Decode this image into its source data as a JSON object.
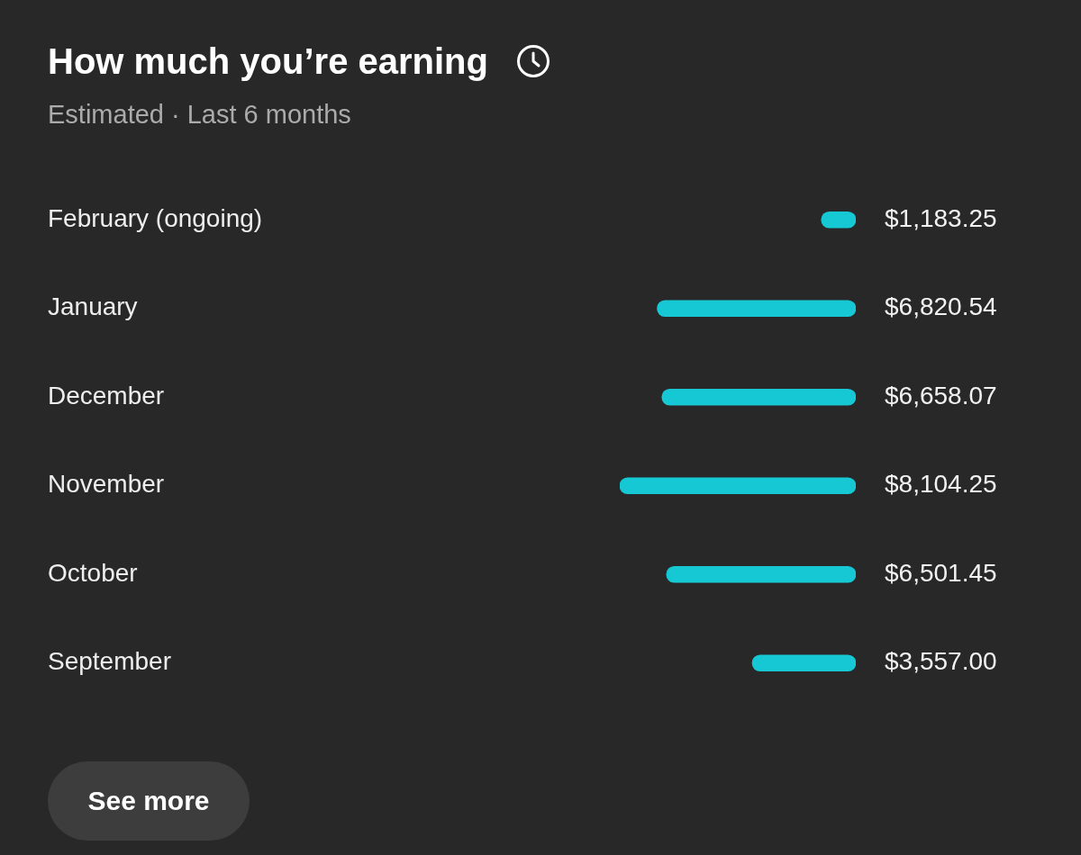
{
  "chart_data": {
    "type": "bar",
    "orientation": "horizontal",
    "title": "How much you’re earning",
    "subtitle": "Estimated · Last 6 months",
    "categories": [
      "February (ongoing)",
      "January",
      "December",
      "November",
      "October",
      "September"
    ],
    "values": [
      1183.25,
      6820.54,
      6658.07,
      8104.25,
      6501.45,
      3557.0
    ],
    "value_labels": [
      "$1,183.25",
      "$6,820.54",
      "$6,658.07",
      "$8,104.25",
      "$6,501.45",
      "$3,557.00"
    ],
    "color": "#15c8d3",
    "xlim": [
      8104.25,
      0
    ],
    "tick_labels": "y",
    "annotations": [
      "See more"
    ]
  }
}
